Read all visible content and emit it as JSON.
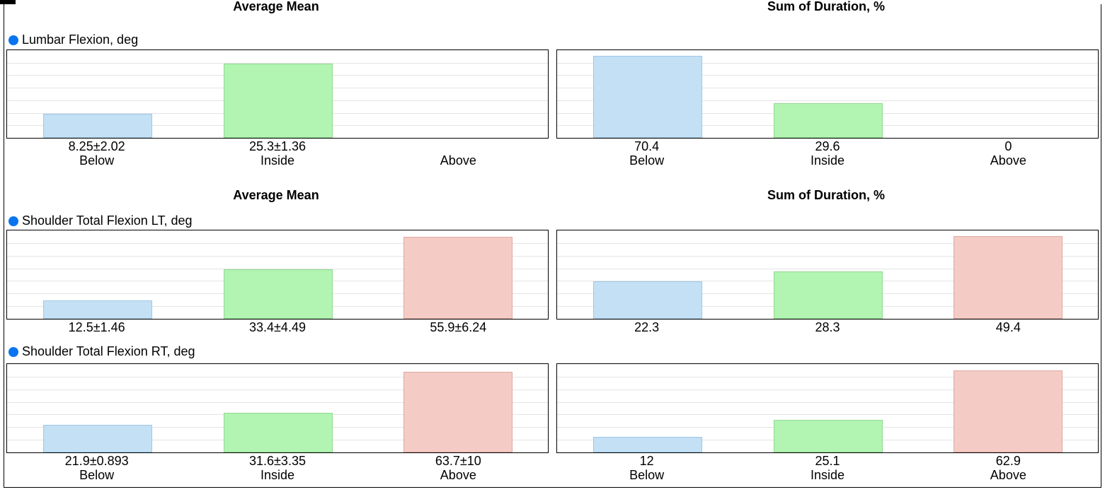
{
  "colors": {
    "below": "#c3e0f4",
    "below_edge": "#9fc8e6",
    "inside": "#b2f4b2",
    "inside_edge": "#8fd98f",
    "above": "#f4cbc5",
    "above_edge": "#dfa9a1",
    "grid": "#e4e4e4",
    "dot": "#0a74f0"
  },
  "headers": [
    {
      "left": "Average Mean",
      "right": "Sum of Duration, %"
    },
    {
      "left": "Average Mean",
      "right": "Sum of Duration, %"
    }
  ],
  "metrics": [
    {
      "name": "Lumbar Flexion, deg",
      "marker_icon": "blue-dot-icon"
    },
    {
      "name": "Shoulder Total Flexion LT, deg",
      "marker_icon": "blue-dot-icon"
    },
    {
      "name": "Shoulder Total Flexion RT, deg",
      "marker_icon": "blue-dot-icon"
    }
  ],
  "chart_data": [
    {
      "type": "bar",
      "metric": "Lumbar Flexion, deg",
      "group": "Average Mean",
      "categories": [
        "Below",
        "Inside",
        "Above"
      ],
      "values": [
        8.25,
        25.3,
        null
      ],
      "value_labels": [
        "8.25±2.02",
        "25.3±1.36",
        ""
      ],
      "category_labels": [
        "Below",
        "Inside",
        "Above"
      ],
      "ylim": [
        0,
        30
      ],
      "grid": true
    },
    {
      "type": "bar",
      "metric": "Lumbar Flexion, deg",
      "group": "Sum of Duration, %",
      "categories": [
        "Below",
        "Inside",
        "Above"
      ],
      "values": [
        70.4,
        29.6,
        0
      ],
      "value_labels": [
        "70.4",
        "29.6",
        "0"
      ],
      "category_labels": [
        "Below",
        "Inside",
        "Above"
      ],
      "ylim": [
        0,
        75
      ],
      "grid": true
    },
    {
      "type": "bar",
      "metric": "Shoulder Total Flexion LT, deg",
      "group": "Average Mean",
      "categories": [
        "Below",
        "Inside",
        "Above"
      ],
      "values": [
        12.5,
        33.4,
        55.9
      ],
      "value_labels": [
        "12.5±1.46",
        "33.4±4.49",
        "55.9±6.24"
      ],
      "category_labels": [
        "",
        "",
        ""
      ],
      "ylim": [
        0,
        60
      ],
      "grid": true
    },
    {
      "type": "bar",
      "metric": "Shoulder Total Flexion LT, deg",
      "group": "Sum of Duration, %",
      "categories": [
        "Below",
        "Inside",
        "Above"
      ],
      "values": [
        22.3,
        28.3,
        49.4
      ],
      "value_labels": [
        "22.3",
        "28.3",
        "49.4"
      ],
      "category_labels": [
        "",
        "",
        ""
      ],
      "ylim": [
        0,
        53
      ],
      "grid": true
    },
    {
      "type": "bar",
      "metric": "Shoulder Total Flexion RT, deg",
      "group": "Average Mean",
      "categories": [
        "Below",
        "Inside",
        "Above"
      ],
      "values": [
        21.9,
        31.6,
        63.7
      ],
      "value_labels": [
        "21.9±0.893",
        "31.6±3.35",
        "63.7±10"
      ],
      "category_labels": [
        "Below",
        "Inside",
        "Above"
      ],
      "ylim": [
        0,
        70
      ],
      "grid": true
    },
    {
      "type": "bar",
      "metric": "Shoulder Total Flexion RT, deg",
      "group": "Sum of Duration, %",
      "categories": [
        "Below",
        "Inside",
        "Above"
      ],
      "values": [
        12,
        25.1,
        62.9
      ],
      "value_labels": [
        "12",
        "25.1",
        "62.9"
      ],
      "category_labels": [
        "Below",
        "Inside",
        "Above"
      ],
      "ylim": [
        0,
        68
      ],
      "grid": true
    }
  ]
}
